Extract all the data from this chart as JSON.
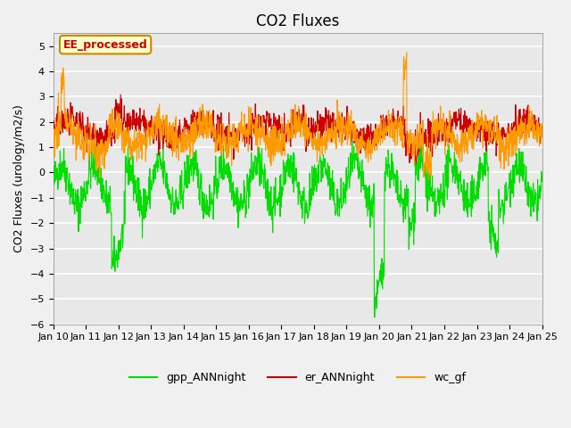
{
  "title": "CO2 Fluxes",
  "ylabel": "CO2 Fluxes (urology/m2/s)",
  "ylim": [
    -6.0,
    5.5
  ],
  "yticks": [
    -6.0,
    -5.0,
    -4.0,
    -3.0,
    -2.0,
    -1.0,
    0.0,
    1.0,
    2.0,
    3.0,
    4.0,
    5.0
  ],
  "x_labels": [
    "Jan 10",
    "Jan 11",
    "Jan 12",
    "Jan 13",
    "Jan 14",
    "Jan 15",
    "Jan 16",
    "Jan 17",
    "Jan 18",
    "Jan 19",
    "Jan 20",
    "Jan 21",
    "Jan 22",
    "Jan 23",
    "Jan 24",
    "Jan 25"
  ],
  "x_tick_positions": [
    10,
    11,
    12,
    13,
    14,
    15,
    16,
    17,
    18,
    19,
    20,
    21,
    22,
    23,
    24,
    25
  ],
  "n_points": 1440,
  "x_start": 10,
  "x_end": 25,
  "colors": {
    "gpp": "#00dd00",
    "er": "#cc0000",
    "wc": "#ff9900"
  },
  "legend_labels": [
    "gpp_ANNnight",
    "er_ANNnight",
    "wc_gf"
  ],
  "annotation_text": "EE_processed",
  "annotation_bg": "#ffffcc",
  "annotation_border": "#cc8800",
  "bg_color": "#e8e8e8",
  "grid_color": "#ffffff",
  "title_fontsize": 12,
  "label_fontsize": 9,
  "tick_fontsize": 8
}
